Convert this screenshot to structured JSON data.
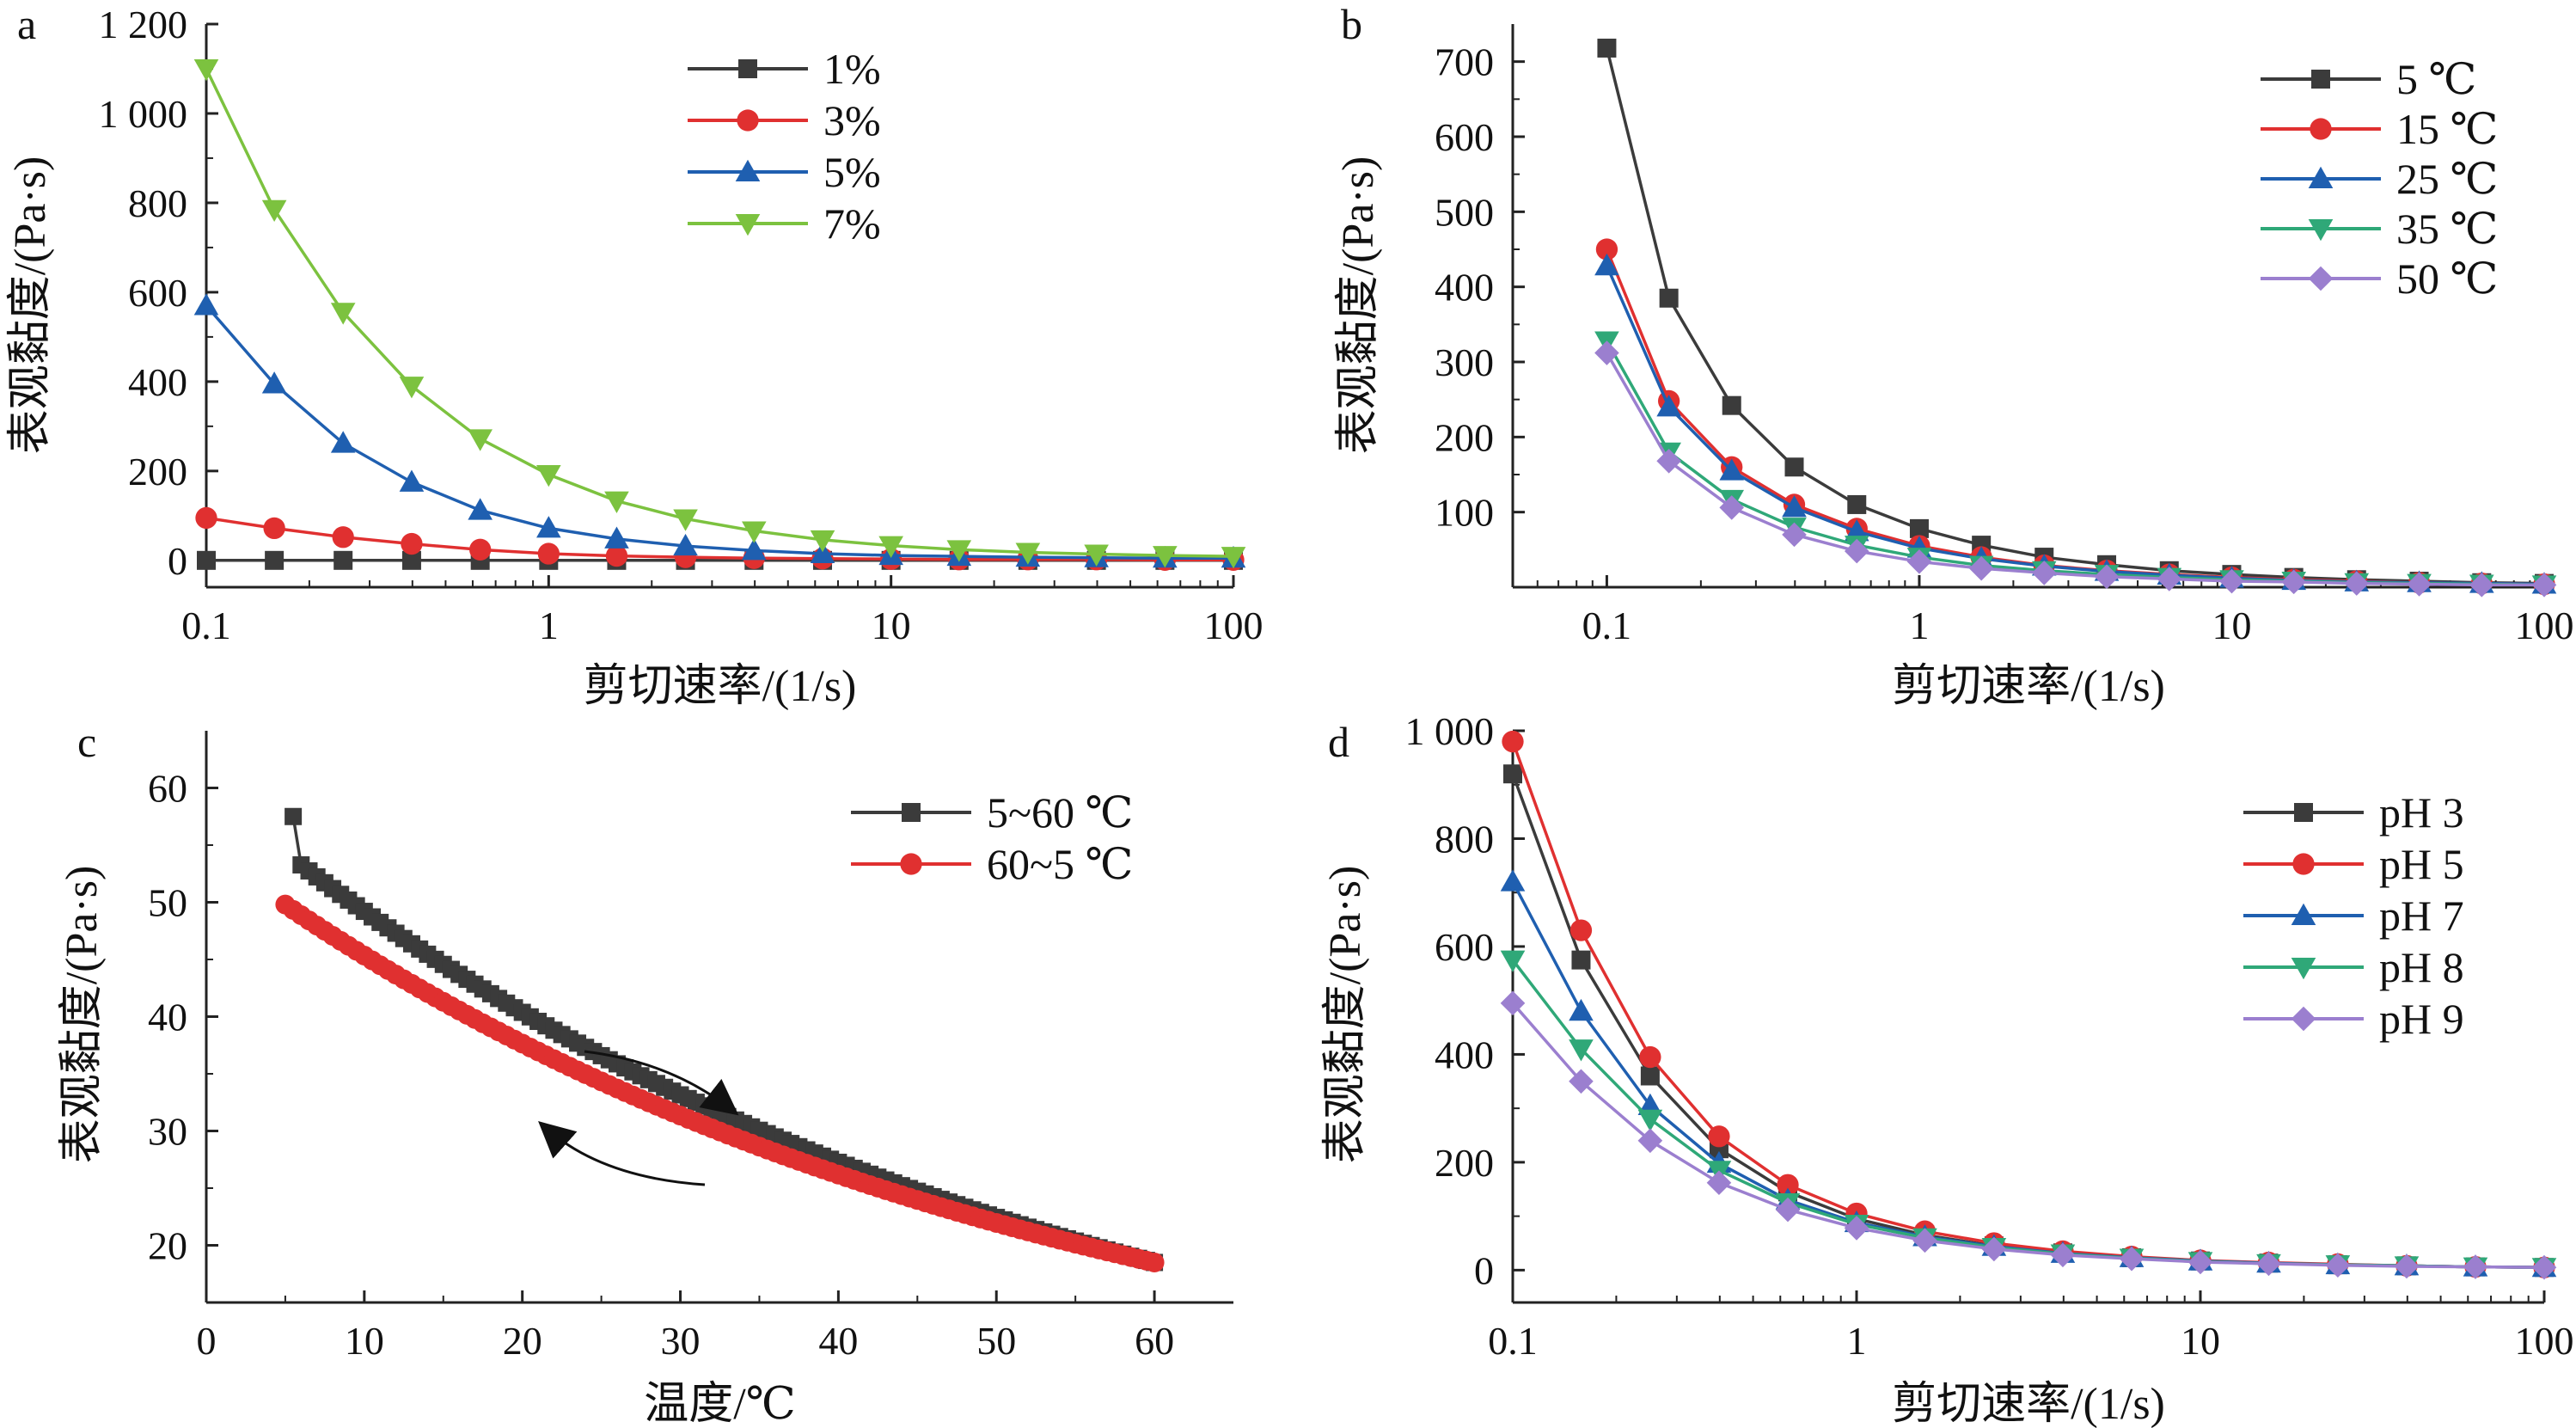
{
  "colors": {
    "black": "#3b3b3b",
    "red": "#e03030",
    "blue": "#1f5fb0",
    "green": "#2fa878",
    "lime": "#7cc23f",
    "purple": "#9b7fcf"
  },
  "chart_data": [
    {
      "panel": "a",
      "type": "line",
      "xscale": "log",
      "xlim": [
        0.1,
        100
      ],
      "ylim": [
        -60,
        1200
      ],
      "xticks": [
        "0.1",
        "1",
        "10",
        "100"
      ],
      "yticks": [
        "0",
        "200",
        "400",
        "600",
        "800",
        "1 000",
        "1 200"
      ],
      "xlabel": "剪切速率/(1/s)",
      "ylabel": "表观黏度/(Pa·s)",
      "legend_position": "top-right",
      "x": [
        0.1,
        0.158,
        0.251,
        0.398,
        0.631,
        1,
        1.58,
        2.51,
        3.98,
        6.31,
        10,
        15.8,
        25.1,
        39.8,
        63.1,
        100
      ],
      "series": [
        {
          "name": "1%",
          "color": "#3b3b3b",
          "marker": "square",
          "values": [
            0,
            0,
            0,
            0,
            0,
            0,
            0,
            0,
            0,
            0,
            0,
            0,
            0,
            0,
            0,
            0
          ]
        },
        {
          "name": "3%",
          "color": "#e03030",
          "marker": "circle",
          "values": [
            95,
            72,
            52,
            37,
            24,
            15,
            10,
            7,
            5,
            4,
            3,
            2,
            2,
            2,
            1,
            1
          ]
        },
        {
          "name": "5%",
          "color": "#1f5fb0",
          "marker": "triangle-up",
          "values": [
            570,
            395,
            262,
            175,
            112,
            72,
            48,
            32,
            22,
            15,
            11,
            9,
            7,
            6,
            5,
            5
          ]
        },
        {
          "name": "7%",
          "color": "#7cc23f",
          "marker": "triangle-down",
          "values": [
            1100,
            785,
            555,
            390,
            272,
            192,
            133,
            93,
            66,
            46,
            33,
            24,
            18,
            14,
            11,
            9
          ]
        }
      ]
    },
    {
      "panel": "b",
      "type": "line",
      "xscale": "log",
      "xlim": [
        0.05,
        100
      ],
      "ylim": [
        0,
        750
      ],
      "xticks": [
        "0.1",
        "1",
        "10",
        "100"
      ],
      "yticks": [
        "100",
        "200",
        "300",
        "400",
        "500",
        "600",
        "700"
      ],
      "xlabel": "剪切速率/(1/s)",
      "ylabel": "表观黏度/(Pa·s)",
      "legend_position": "top-right",
      "x": [
        0.1,
        0.158,
        0.251,
        0.398,
        0.631,
        1,
        1.58,
        2.51,
        3.98,
        6.31,
        10,
        15.8,
        25.1,
        39.8,
        63.1,
        100
      ],
      "series": [
        {
          "name": "5 ℃",
          "color": "#3b3b3b",
          "marker": "square",
          "values": [
            718,
            385,
            242,
            160,
            110,
            78,
            56,
            40,
            30,
            22,
            17,
            13,
            10,
            8,
            6,
            5
          ]
        },
        {
          "name": "15 ℃",
          "color": "#e03030",
          "marker": "circle",
          "values": [
            450,
            248,
            160,
            110,
            78,
            55,
            40,
            29,
            22,
            17,
            13,
            10,
            8,
            6,
            5,
            4
          ]
        },
        {
          "name": "25 ℃",
          "color": "#1f5fb0",
          "marker": "triangle-up",
          "values": [
            428,
            240,
            155,
            106,
            74,
            52,
            38,
            28,
            21,
            16,
            12,
            9,
            7,
            6,
            5,
            4
          ]
        },
        {
          "name": "35 ℃",
          "color": "#2fa878",
          "marker": "triangle-down",
          "values": [
            328,
            180,
            117,
            80,
            56,
            40,
            29,
            22,
            17,
            13,
            10,
            8,
            6,
            5,
            4,
            3
          ]
        },
        {
          "name": "50 ℃",
          "color": "#9b7fcf",
          "marker": "diamond",
          "values": [
            312,
            168,
            106,
            70,
            48,
            34,
            25,
            19,
            14,
            11,
            8,
            7,
            5,
            4,
            3,
            3
          ]
        }
      ]
    },
    {
      "panel": "c",
      "type": "line",
      "xlim": [
        0,
        65
      ],
      "ylim": [
        15,
        65
      ],
      "xticks": [
        "0",
        "10",
        "20",
        "30",
        "40",
        "50",
        "60"
      ],
      "yticks": [
        "20",
        "30",
        "40",
        "50",
        "60"
      ],
      "xlabel": "温度/℃",
      "ylabel": "表观黏度/(Pa·s)",
      "legend_position": "top-right",
      "annotations": [
        "arrow-heating",
        "arrow-cooling"
      ],
      "series": [
        {
          "name": "5~60 ℃",
          "color": "#3b3b3b",
          "marker": "square",
          "x_start": 5.5,
          "x_end": 60,
          "x_step": 0.5,
          "y_start": 57.5,
          "y_end": 18.5,
          "curve": "decay",
          "initial_drop": [
            57.5,
            53.8
          ]
        },
        {
          "name": "60~5 ℃",
          "color": "#e03030",
          "marker": "circle",
          "x_start": 5,
          "x_end": 60,
          "x_step": 0.5,
          "y_start": 49.8,
          "y_end": 18.5,
          "curve": "decay"
        }
      ]
    },
    {
      "panel": "d",
      "type": "line",
      "xscale": "log",
      "xlim": [
        0.1,
        100
      ],
      "ylim": [
        -60,
        1000
      ],
      "xticks": [
        "0.1",
        "1",
        "10",
        "100"
      ],
      "yticks": [
        "0",
        "200",
        "400",
        "600",
        "800",
        "1 000"
      ],
      "xlabel": "剪切速率/(1/s)",
      "ylabel": "表观黏度/(Pa·s)",
      "legend_position": "top-right",
      "x": [
        0.1,
        0.158,
        0.251,
        0.398,
        0.631,
        1,
        1.58,
        2.51,
        3.98,
        6.31,
        10,
        15.8,
        25.1,
        39.8,
        63.1,
        100
      ],
      "series": [
        {
          "name": "pH 3",
          "color": "#3b3b3b",
          "marker": "square",
          "values": [
            920,
            575,
            360,
            225,
            145,
            95,
            65,
            45,
            32,
            23,
            17,
            13,
            10,
            8,
            6,
            5
          ]
        },
        {
          "name": "pH 5",
          "color": "#e03030",
          "marker": "circle",
          "values": [
            980,
            630,
            395,
            248,
            158,
            105,
            72,
            50,
            35,
            25,
            18,
            14,
            11,
            8,
            6,
            5
          ]
        },
        {
          "name": "pH 7",
          "color": "#1f5fb0",
          "marker": "triangle-up",
          "values": [
            720,
            480,
            305,
            198,
            130,
            88,
            62,
            44,
            31,
            23,
            17,
            13,
            10,
            8,
            6,
            5
          ]
        },
        {
          "name": "pH 8",
          "color": "#2fa878",
          "marker": "triangle-down",
          "values": [
            575,
            410,
            280,
            185,
            125,
            85,
            60,
            42,
            30,
            22,
            16,
            12,
            10,
            8,
            6,
            5
          ]
        },
        {
          "name": "pH 9",
          "color": "#9b7fcf",
          "marker": "diamond",
          "values": [
            495,
            350,
            240,
            162,
            112,
            78,
            55,
            39,
            28,
            21,
            15,
            12,
            9,
            7,
            6,
            5
          ]
        }
      ]
    }
  ]
}
